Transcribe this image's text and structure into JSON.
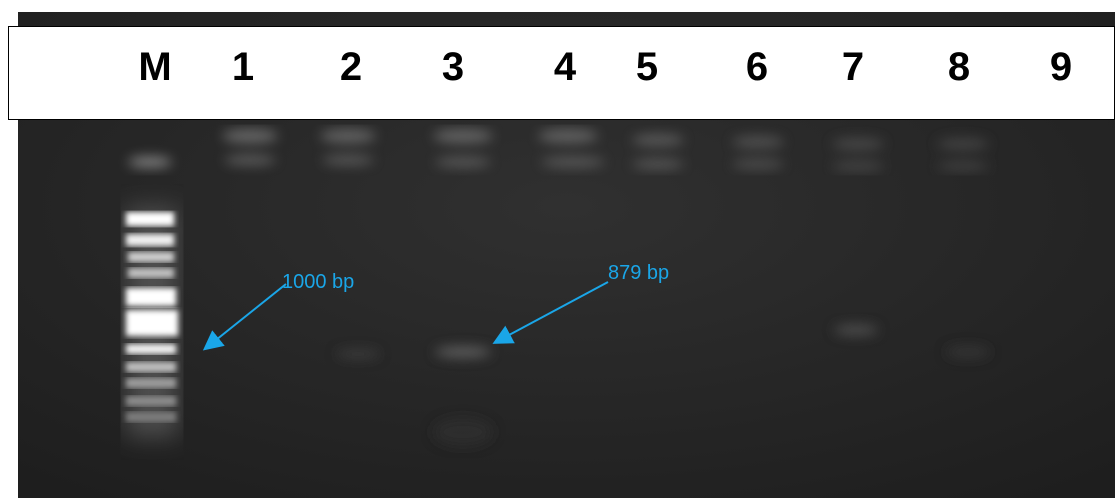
{
  "lanes": [
    "M",
    "1",
    "2",
    "3",
    "4",
    "5",
    "6",
    "7",
    "8",
    "9"
  ],
  "annotations": {
    "marker_band": "1000 bp",
    "product_band": "879 bp"
  },
  "colors": {
    "gel_background": "#2a2a2a",
    "band": "#ffffff",
    "annotation": "#1aa6e8"
  }
}
